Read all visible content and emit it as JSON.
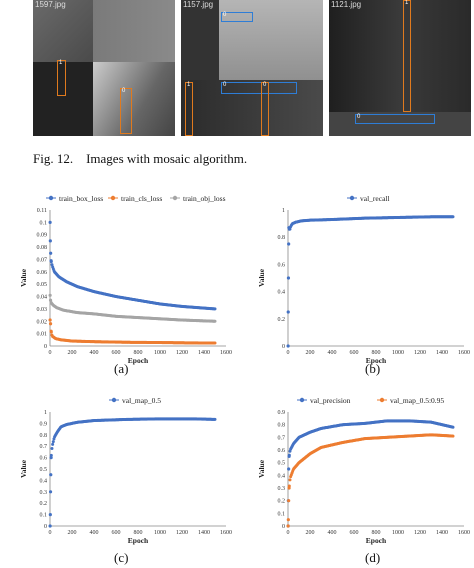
{
  "mosaic": {
    "tiles": [
      {
        "label": "1597.jpg"
      },
      {
        "label": "1157.jpg"
      },
      {
        "label": "1121.jpg"
      }
    ],
    "box_labels": [
      "1",
      "0",
      "0",
      "1",
      "0",
      "0"
    ]
  },
  "figure_caption": "Fig. 12.    Images with mosaic algorithm.",
  "colors": {
    "blue": "#4472c4",
    "orange": "#ed7d31",
    "gray": "#a5a5a5"
  },
  "chart_data": [
    {
      "id": "a",
      "type": "scatter",
      "subcaption": "(a)",
      "xlabel": "Epoch",
      "ylabel": "Value",
      "xlim": [
        0,
        1600
      ],
      "ylim": [
        0,
        0.11
      ],
      "x_ticks": [
        "0",
        "200",
        "400",
        "600",
        "800",
        "1000",
        "1200",
        "1400",
        "1600"
      ],
      "y_ticks": [
        "0",
        "0.01",
        "0.02",
        "0.03",
        "0.04",
        "0.05",
        "0.06",
        "0.07",
        "0.08",
        "0.09",
        "0.1",
        "0.11"
      ],
      "legend": "top",
      "series": [
        {
          "name": "train_box_loss",
          "color": "#4472c4",
          "points": [
            [
              1,
              0.1
            ],
            [
              3,
              0.085
            ],
            [
              6,
              0.075
            ],
            [
              10,
              0.069
            ],
            [
              20,
              0.065
            ],
            [
              40,
              0.06
            ],
            [
              80,
              0.056
            ],
            [
              150,
              0.052
            ],
            [
              250,
              0.048
            ],
            [
              400,
              0.044
            ],
            [
              600,
              0.04
            ],
            [
              800,
              0.037
            ],
            [
              1000,
              0.034
            ],
            [
              1200,
              0.032
            ],
            [
              1500,
              0.03
            ]
          ]
        },
        {
          "name": "train_cls_loss",
          "color": "#ed7d31",
          "points": [
            [
              1,
              0.021
            ],
            [
              5,
              0.018
            ],
            [
              10,
              0.012
            ],
            [
              20,
              0.008
            ],
            [
              50,
              0.006
            ],
            [
              100,
              0.005
            ],
            [
              200,
              0.004
            ],
            [
              400,
              0.0035
            ],
            [
              700,
              0.003
            ],
            [
              1000,
              0.0028
            ],
            [
              1300,
              0.0025
            ],
            [
              1500,
              0.0024
            ]
          ]
        },
        {
          "name": "train_obj_loss",
          "color": "#a5a5a5",
          "points": [
            [
              1,
              0.041
            ],
            [
              5,
              0.037
            ],
            [
              10,
              0.035
            ],
            [
              30,
              0.033
            ],
            [
              60,
              0.031
            ],
            [
              120,
              0.029
            ],
            [
              250,
              0.027
            ],
            [
              400,
              0.026
            ],
            [
              600,
              0.024
            ],
            [
              800,
              0.023
            ],
            [
              1000,
              0.022
            ],
            [
              1200,
              0.021
            ],
            [
              1500,
              0.02
            ]
          ]
        }
      ]
    },
    {
      "id": "b",
      "type": "scatter",
      "subcaption": "(b)",
      "xlabel": "Epoch",
      "ylabel": "Value",
      "xlim": [
        0,
        1600
      ],
      "ylim": [
        0,
        1
      ],
      "x_ticks": [
        "0",
        "200",
        "400",
        "600",
        "800",
        "1000",
        "1200",
        "1400",
        "1600"
      ],
      "y_ticks": [
        "0",
        "0.2",
        "0.4",
        "0.6",
        "0.8",
        "1"
      ],
      "legend": "top",
      "series": [
        {
          "name": "val_recall",
          "color": "#4472c4",
          "points": [
            [
              1,
              0.0
            ],
            [
              2,
              0.25
            ],
            [
              4,
              0.5
            ],
            [
              6,
              0.75
            ],
            [
              8,
              0.87
            ],
            [
              15,
              0.85
            ],
            [
              25,
              0.88
            ],
            [
              40,
              0.9
            ],
            [
              70,
              0.91
            ],
            [
              120,
              0.92
            ],
            [
              200,
              0.925
            ],
            [
              400,
              0.93
            ],
            [
              700,
              0.94
            ],
            [
              1000,
              0.945
            ],
            [
              1300,
              0.95
            ],
            [
              1500,
              0.95
            ]
          ]
        }
      ]
    },
    {
      "id": "c",
      "type": "scatter",
      "subcaption": "(c)",
      "xlabel": "Epoch",
      "ylabel": "Value",
      "xlim": [
        0,
        1600
      ],
      "ylim": [
        0,
        1
      ],
      "x_ticks": [
        "0",
        "200",
        "400",
        "600",
        "800",
        "1000",
        "1200",
        "1400",
        "1600"
      ],
      "y_ticks": [
        "0",
        "0.1",
        "0.2",
        "0.3",
        "0.4",
        "0.5",
        "0.6",
        "0.7",
        "0.8",
        "0.9",
        "1"
      ],
      "legend": "top",
      "series": [
        {
          "name": "val_map_0.5",
          "color": "#4472c4",
          "points": [
            [
              1,
              0.0
            ],
            [
              3,
              0.1
            ],
            [
              5,
              0.3
            ],
            [
              7,
              0.45
            ],
            [
              10,
              0.6
            ],
            [
              20,
              0.7
            ],
            [
              40,
              0.78
            ],
            [
              70,
              0.83
            ],
            [
              100,
              0.87
            ],
            [
              150,
              0.89
            ],
            [
              250,
              0.91
            ],
            [
              400,
              0.925
            ],
            [
              700,
              0.935
            ],
            [
              1000,
              0.94
            ],
            [
              1300,
              0.94
            ],
            [
              1500,
              0.935
            ]
          ]
        }
      ]
    },
    {
      "id": "d",
      "type": "scatter",
      "subcaption": "(d)",
      "xlabel": "Epoch",
      "ylabel": "Value",
      "xlim": [
        0,
        1600
      ],
      "ylim": [
        0,
        0.9
      ],
      "x_ticks": [
        "0",
        "200",
        "400",
        "600",
        "800",
        "1000",
        "1200",
        "1400",
        "1600"
      ],
      "y_ticks": [
        "0",
        "0.1",
        "0.2",
        "0.3",
        "0.4",
        "0.5",
        "0.6",
        "0.7",
        "0.8",
        "0.9"
      ],
      "legend": "top",
      "series": [
        {
          "name": "val_precision",
          "color": "#4472c4",
          "points": [
            [
              1,
              0.0
            ],
            [
              3,
              0.2
            ],
            [
              6,
              0.45
            ],
            [
              10,
              0.55
            ],
            [
              20,
              0.6
            ],
            [
              50,
              0.65
            ],
            [
              100,
              0.7
            ],
            [
              200,
              0.74
            ],
            [
              300,
              0.77
            ],
            [
              500,
              0.8
            ],
            [
              700,
              0.81
            ],
            [
              900,
              0.83
            ],
            [
              1100,
              0.83
            ],
            [
              1300,
              0.82
            ],
            [
              1400,
              0.8
            ],
            [
              1500,
              0.78
            ]
          ]
        },
        {
          "name": "val_map_0.5:0.95",
          "color": "#ed7d31",
          "points": [
            [
              1,
              0.0
            ],
            [
              3,
              0.05
            ],
            [
              6,
              0.2
            ],
            [
              10,
              0.3
            ],
            [
              20,
              0.38
            ],
            [
              50,
              0.45
            ],
            [
              100,
              0.5
            ],
            [
              200,
              0.57
            ],
            [
              300,
              0.62
            ],
            [
              500,
              0.66
            ],
            [
              700,
              0.69
            ],
            [
              900,
              0.7
            ],
            [
              1100,
              0.71
            ],
            [
              1300,
              0.72
            ],
            [
              1500,
              0.71
            ]
          ]
        }
      ]
    }
  ]
}
